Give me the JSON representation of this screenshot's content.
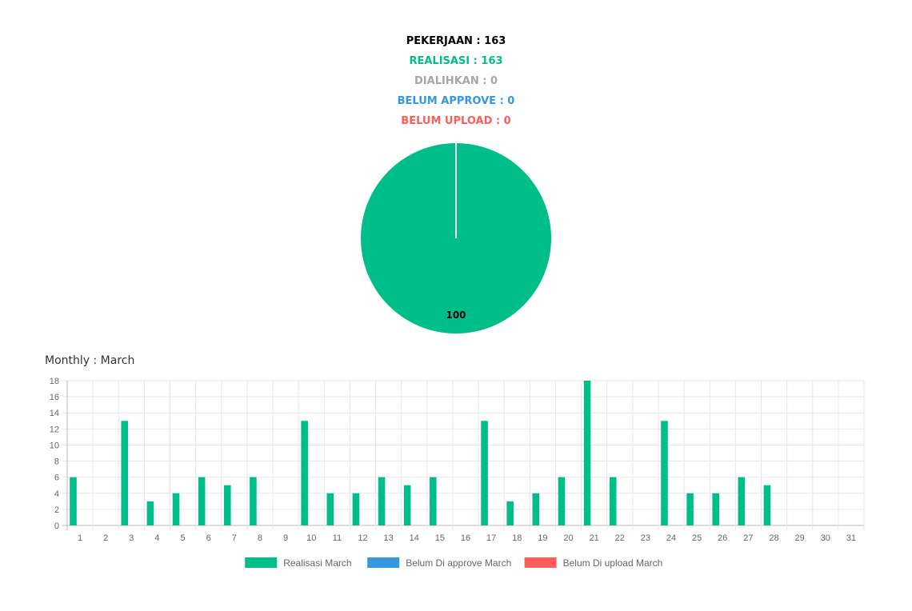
{
  "summary": {
    "pekerjaan": "PEKERJAAN : 163",
    "realisasi": "REALISASI : 163",
    "dialihkan": "DIALIHKAN : 0",
    "belum_approve": "BELUM APPROVE : 0",
    "belum_upload": "BELUM UPLOAD : 0"
  },
  "colors": {
    "realisasi": "#00be8a",
    "dialihkan": "#a6a6a6",
    "approve": "#3398dc",
    "upload": "#ff5c5c",
    "pekerjaan": "#000000"
  },
  "monthly_title": "Monthly : March",
  "chart_data": [
    {
      "type": "pie",
      "labels": [
        "Realisasi",
        "Dialihkan",
        "Belum Approve",
        "Belum Upload"
      ],
      "values": [
        100,
        0,
        0,
        0
      ],
      "data_labels": [
        "100"
      ]
    },
    {
      "type": "bar",
      "categories": [
        "1",
        "2",
        "3",
        "4",
        "5",
        "6",
        "7",
        "8",
        "9",
        "10",
        "11",
        "12",
        "13",
        "14",
        "15",
        "16",
        "17",
        "18",
        "19",
        "20",
        "21",
        "22",
        "23",
        "24",
        "25",
        "26",
        "27",
        "28",
        "29",
        "30",
        "31"
      ],
      "series": [
        {
          "name": "Realisasi March",
          "color": "#00be8a",
          "values": [
            6,
            0,
            13,
            3,
            4,
            6,
            5,
            6,
            0,
            13,
            4,
            4,
            6,
            5,
            6,
            0,
            13,
            3,
            4,
            6,
            18,
            6,
            0,
            13,
            4,
            4,
            6,
            5,
            0,
            0,
            0
          ]
        },
        {
          "name": "Belum Di approve March",
          "color": "#3398dc",
          "values": [
            0,
            0,
            0,
            0,
            0,
            0,
            0,
            0,
            0,
            0,
            0,
            0,
            0,
            0,
            0,
            0,
            0,
            0,
            0,
            0,
            0,
            0,
            0,
            0,
            0,
            0,
            0,
            0,
            0,
            0,
            0
          ]
        },
        {
          "name": "Belum Di upload March",
          "color": "#ff5c5c",
          "values": [
            0,
            0,
            0,
            0,
            0,
            0,
            0,
            0,
            0,
            0,
            0,
            0,
            0,
            0,
            0,
            0,
            0,
            0,
            0,
            0,
            0,
            0,
            0,
            0,
            0,
            0,
            0,
            0,
            0,
            0,
            0
          ]
        }
      ],
      "ylim": [
        0,
        18
      ],
      "yticks": [
        0,
        2,
        4,
        6,
        8,
        10,
        12,
        14,
        16,
        18
      ],
      "grid": true,
      "legend": "bottom"
    }
  ]
}
